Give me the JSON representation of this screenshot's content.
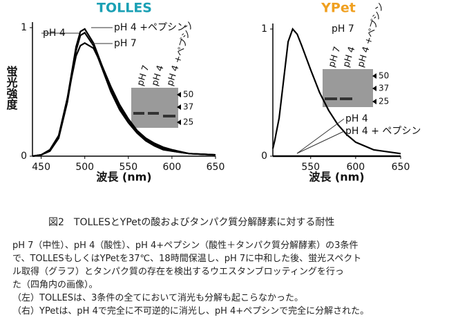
{
  "chart_data": [
    {
      "type": "line",
      "title": "TOLLES",
      "title_color": "#1aa0b4",
      "xlabel": "波長 (nm)",
      "ylabel": "蛍光強度",
      "x": [
        440,
        450,
        460,
        470,
        480,
        490,
        495,
        500,
        510,
        520,
        530,
        540,
        550,
        560,
        570,
        580,
        590,
        600,
        620,
        650
      ],
      "series": [
        {
          "name": "pH 4",
          "color": "#000000",
          "values": [
            0,
            0.01,
            0.04,
            0.14,
            0.42,
            0.82,
            0.94,
            0.96,
            0.86,
            0.68,
            0.5,
            0.36,
            0.26,
            0.18,
            0.12,
            0.08,
            0.05,
            0.04,
            0.02,
            0.01
          ]
        },
        {
          "name": "pH 4 +ペプシン",
          "color": "#000000",
          "values": [
            0,
            0.01,
            0.04,
            0.15,
            0.45,
            0.85,
            0.97,
            0.99,
            0.88,
            0.7,
            0.52,
            0.38,
            0.27,
            0.19,
            0.13,
            0.09,
            0.06,
            0.04,
            0.02,
            0.01
          ]
        },
        {
          "name": "pH 7",
          "color": "#000000",
          "values": [
            0,
            0.01,
            0.05,
            0.16,
            0.45,
            0.78,
            0.86,
            0.88,
            0.84,
            0.7,
            0.54,
            0.4,
            0.29,
            0.2,
            0.14,
            0.1,
            0.07,
            0.05,
            0.02,
            0.01
          ]
        }
      ],
      "xlim": [
        440,
        650
      ],
      "xticks": [
        450,
        500,
        550,
        600,
        650
      ],
      "ylim": [
        0,
        1
      ],
      "yticks": [
        0,
        1
      ],
      "inset": {
        "lanes": [
          "pH 7",
          "pH 4",
          "pH 4 +ペプシン"
        ],
        "markers": [
          50,
          37,
          25
        ]
      }
    },
    {
      "type": "line",
      "title": "YPet",
      "title_color": "#f0a020",
      "xlabel": "波長 (nm)",
      "x": [
        508,
        510,
        515,
        520,
        525,
        530,
        535,
        540,
        550,
        560,
        570,
        580,
        590,
        600,
        620,
        650
      ],
      "series": [
        {
          "name": "pH 7",
          "color": "#000000",
          "values": [
            0.06,
            0.12,
            0.3,
            0.6,
            0.9,
            1.0,
            0.96,
            0.87,
            0.68,
            0.5,
            0.36,
            0.25,
            0.17,
            0.11,
            0.05,
            0.02
          ]
        },
        {
          "name": "pH 4",
          "color": "#000000",
          "values": [
            0,
            0,
            0,
            0,
            0,
            0,
            0,
            0,
            0,
            0,
            0,
            0,
            0,
            0,
            0,
            0
          ]
        },
        {
          "name": "pH 4 + ペプシン",
          "color": "#000000",
          "values": [
            0,
            0,
            0,
            0,
            0,
            0,
            0,
            0,
            0,
            0,
            0,
            0,
            0,
            0,
            0,
            0
          ]
        }
      ],
      "xlim": [
        508,
        650
      ],
      "xticks": [
        550,
        600,
        650
      ],
      "ylim": [
        0,
        1
      ],
      "yticks": [
        0,
        1
      ],
      "inset": {
        "lanes": [
          "pH 7",
          "pH 4",
          "pH 4 +ペプシン"
        ],
        "markers": [
          50,
          37,
          25
        ]
      }
    }
  ],
  "caption": {
    "title": "図2　TOLLESとYPetの酸およびタンパク質分解酵素に対する耐性",
    "lines": [
      "pH 7（中性）、pH 4（酸性）、pH 4+ペプシン（酸性＋タンパク質分解酵素）の3条件",
      "で、TOLLESもしくはYPetを37℃、18時間保温し、pH 7に中和した後、蛍光スペクト",
      "ル取得（グラフ）とタンパク質の存在を検出するウエスタンブロッティングを行っ",
      "た（四角内の画像）。",
      "（左）TOLLESは、3条件の全てにおいて消光も分解も起こらなかった。",
      "（右）YPetは、pH 4で完全に不可逆的に消光し、pH 4+ペプシンで完全に分解された。"
    ]
  }
}
